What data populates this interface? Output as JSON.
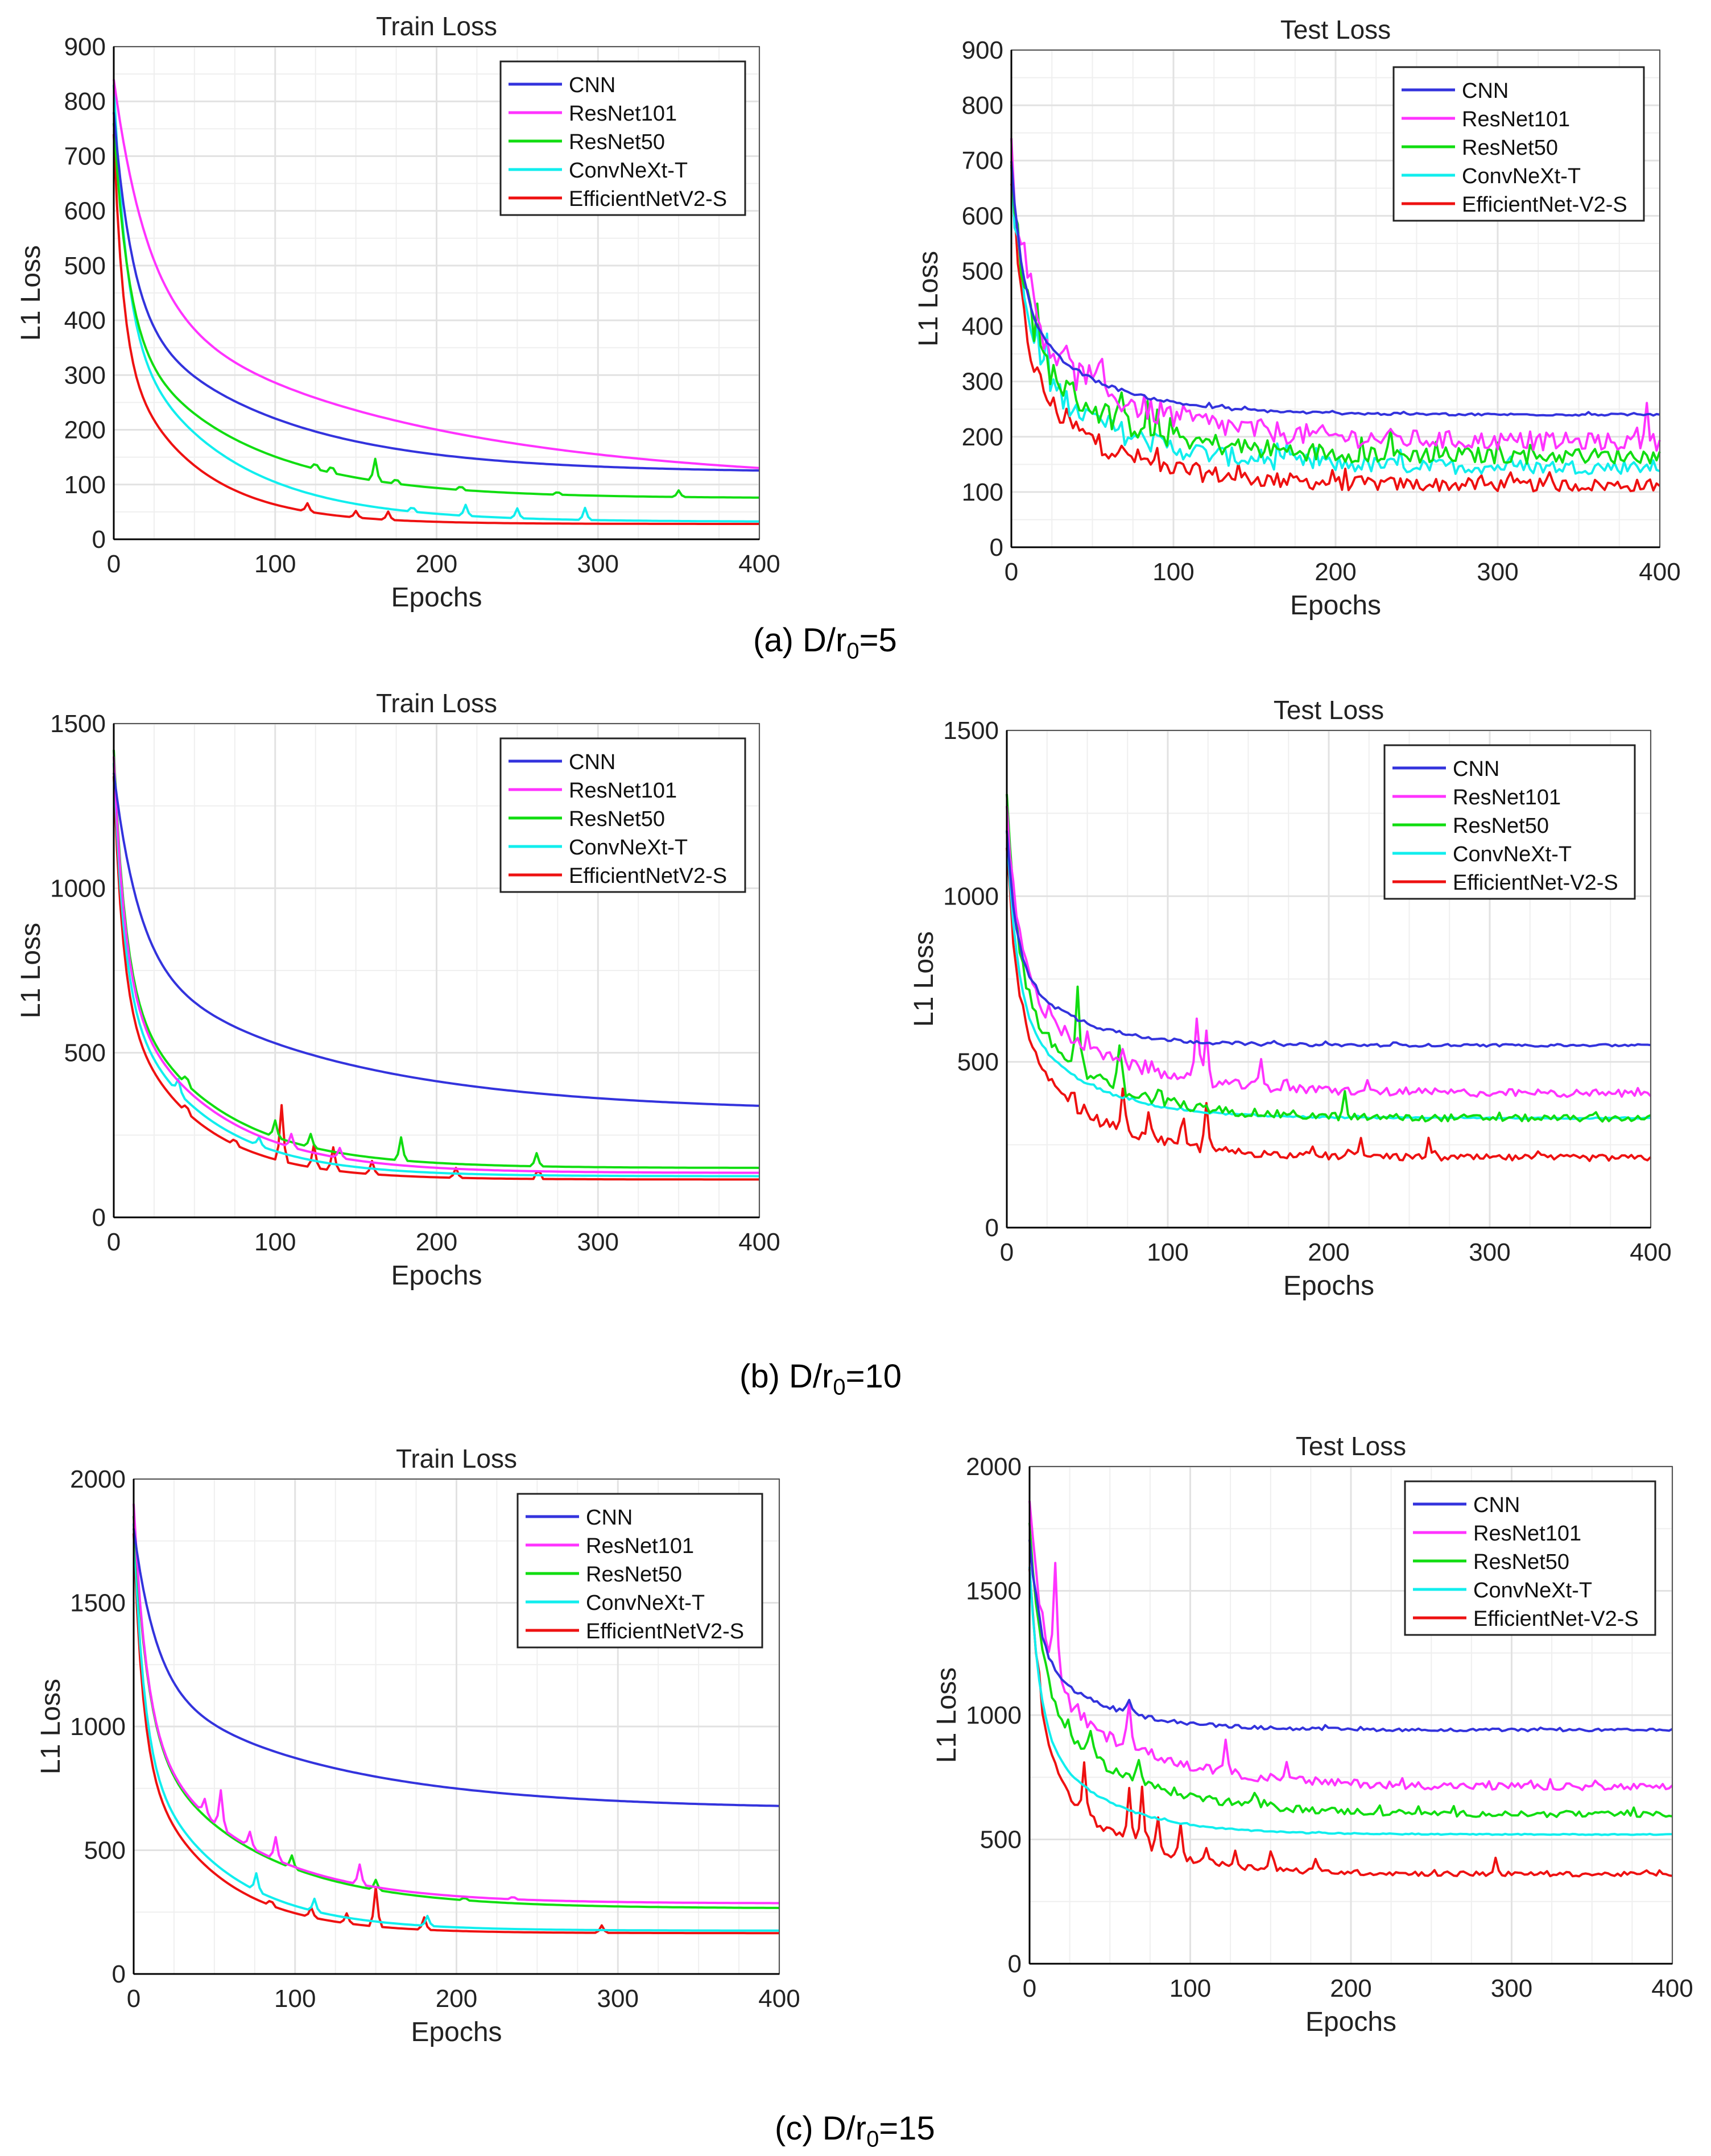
{
  "legend_names": [
    "CNN",
    "ResNet101",
    "ResNet50",
    "ConvNeXt-T",
    "EfficientNetV2-S"
  ],
  "legend_names_test": [
    "CNN",
    "ResNet101",
    "ResNet50",
    "ConvNeXt-T",
    "EfficientNet-V2-S"
  ],
  "colors": {
    "CNN": "#3333dd",
    "ResNet101": "#ff33ff",
    "ResNet50": "#11dd11",
    "ConvNeXt-T": "#11eeee",
    "EfficientNetV2-S": "#ee1111",
    "grid": "#e2e2e2",
    "axis": "#000000"
  },
  "captions": [
    {
      "prefix": "(a) D/r",
      "sub": "0",
      "suffix": "=5"
    },
    {
      "prefix": "(b) D/r",
      "sub": "0",
      "suffix": "=10"
    },
    {
      "prefix": "(c) D/r",
      "sub": "0",
      "suffix": "=15"
    }
  ],
  "chart_data": [
    {
      "type": "line",
      "panel": "a-train",
      "title": "Train Loss",
      "xlabel": "Epochs",
      "ylabel": "L1 Loss",
      "xlim": [
        0,
        400
      ],
      "ylim": [
        0,
        900
      ],
      "xticks": [
        0,
        100,
        200,
        300,
        400
      ],
      "yticks": [
        0,
        100,
        200,
        300,
        400,
        500,
        600,
        700,
        800,
        900
      ],
      "legend": "top-right",
      "grid": true,
      "series": [
        {
          "name": "CNN",
          "kind": "train",
          "start": 780,
          "end": 122,
          "decay": 0.011,
          "spikes": []
        },
        {
          "name": "ResNet101",
          "kind": "train",
          "start": 840,
          "end": 100,
          "decay": 0.006,
          "spikes": []
        },
        {
          "name": "ResNet50",
          "kind": "train",
          "start": 760,
          "end": 75,
          "decay": 0.014,
          "spikes": [
            [
              125,
              30
            ],
            [
              135,
              35
            ],
            [
              162,
              40
            ],
            [
              175,
              25
            ],
            [
              215,
              20
            ],
            [
              275,
              15
            ],
            [
              350,
              12
            ]
          ]
        },
        {
          "name": "ConvNeXt-T",
          "kind": "train",
          "start": 830,
          "end": 32,
          "decay": 0.016,
          "spikes": [
            [
              185,
              25
            ],
            [
              218,
              20
            ],
            [
              250,
              18
            ],
            [
              292,
              22
            ]
          ]
        },
        {
          "name": "EfficientNetV2-S",
          "kind": "train",
          "start": 740,
          "end": 28,
          "decay": 0.022,
          "spikes": [
            [
              120,
              15
            ],
            [
              150,
              12
            ],
            [
              170,
              15
            ]
          ]
        }
      ]
    },
    {
      "type": "line",
      "panel": "a-test",
      "title": "Test Loss",
      "xlabel": "Epochs",
      "ylabel": "L1 Loss",
      "xlim": [
        0,
        400
      ],
      "ylim": [
        0,
        900
      ],
      "xticks": [
        0,
        100,
        200,
        300,
        400
      ],
      "yticks": [
        0,
        100,
        200,
        300,
        400,
        500,
        600,
        700,
        800,
        900
      ],
      "legend": "top-right",
      "grid": true,
      "series": [
        {
          "name": "CNN",
          "kind": "test",
          "start": 700,
          "end": 240,
          "decay": 0.035,
          "noise": 3,
          "spikes": []
        },
        {
          "name": "ResNet101",
          "kind": "test",
          "start": 720,
          "end": 190,
          "decay": 0.025,
          "noise": 25,
          "spikes": [
            [
              392,
              60
            ]
          ]
        },
        {
          "name": "ResNet50",
          "kind": "test",
          "start": 700,
          "end": 165,
          "decay": 0.03,
          "noise": 22,
          "spikes": []
        },
        {
          "name": "ConvNeXt-T",
          "kind": "test",
          "start": 680,
          "end": 145,
          "decay": 0.03,
          "noise": 20,
          "spikes": []
        },
        {
          "name": "EfficientNetV2-S",
          "kind": "test",
          "start": 650,
          "end": 112,
          "decay": 0.032,
          "noise": 18,
          "spikes": []
        }
      ]
    },
    {
      "type": "line",
      "panel": "b-train",
      "title": "Train Loss",
      "xlabel": "Epochs",
      "ylabel": "L1 Loss",
      "xlim": [
        0,
        400
      ],
      "ylim": [
        0,
        1500
      ],
      "xticks": [
        0,
        100,
        200,
        300,
        400
      ],
      "yticks": [
        0,
        500,
        1000,
        1500
      ],
      "legend": "top-right",
      "grid": true,
      "series": [
        {
          "name": "CNN",
          "kind": "train",
          "start": 1350,
          "end": 320,
          "decay": 0.008,
          "spikes": []
        },
        {
          "name": "ResNet101",
          "kind": "train",
          "start": 1400,
          "end": 135,
          "decay": 0.018,
          "spikes": [
            [
              110,
              40
            ],
            [
              140,
              30
            ]
          ]
        },
        {
          "name": "ResNet50",
          "kind": "train",
          "start": 1420,
          "end": 150,
          "decay": 0.018,
          "spikes": [
            [
              45,
              70
            ],
            [
              100,
              50
            ],
            [
              122,
              40
            ],
            [
              178,
              70
            ],
            [
              262,
              40
            ]
          ]
        },
        {
          "name": "ConvNeXt-T",
          "kind": "train",
          "start": 1380,
          "end": 125,
          "decay": 0.02,
          "spikes": [
            [
              40,
              40
            ],
            [
              90,
              25
            ]
          ]
        },
        {
          "name": "EfficientNetV2-S",
          "kind": "train",
          "start": 1340,
          "end": 115,
          "decay": 0.022,
          "spikes": [
            [
              45,
              60
            ],
            [
              75,
              50
            ],
            [
              104,
              170
            ],
            [
              124,
              70
            ],
            [
              136,
              70
            ],
            [
              160,
              40
            ],
            [
              212,
              30
            ],
            [
              263,
              85
            ]
          ]
        }
      ]
    },
    {
      "type": "line",
      "panel": "b-test",
      "title": "Test Loss",
      "xlabel": "Epochs",
      "ylabel": "L1 Loss",
      "xlim": [
        0,
        400
      ],
      "ylim": [
        0,
        1500
      ],
      "xticks": [
        0,
        100,
        200,
        300,
        400
      ],
      "yticks": [
        0,
        500,
        1000,
        1500
      ],
      "legend": "top-right",
      "grid": true,
      "series": [
        {
          "name": "CNN",
          "kind": "test",
          "start": 1200,
          "end": 550,
          "decay": 0.045,
          "noise": 6,
          "spikes": []
        },
        {
          "name": "ResNet101",
          "kind": "test",
          "start": 1250,
          "end": 405,
          "decay": 0.03,
          "noise": 18,
          "spikes": [
            [
              118,
              170
            ],
            [
              124,
              150
            ],
            [
              158,
              80
            ]
          ]
        },
        {
          "name": "ResNet50",
          "kind": "test",
          "start": 1300,
          "end": 330,
          "decay": 0.035,
          "noise": 16,
          "spikes": [
            [
              44,
              250
            ],
            [
              70,
              120
            ],
            [
              95,
              100
            ],
            [
              210,
              60
            ]
          ]
        },
        {
          "name": "ConvNeXt-T",
          "kind": "test",
          "start": 1200,
          "end": 330,
          "decay": 0.04,
          "noise": 3,
          "spikes": []
        },
        {
          "name": "EfficientNetV2-S",
          "kind": "test",
          "start": 1150,
          "end": 210,
          "decay": 0.035,
          "noise": 15,
          "spikes": [
            [
              72,
              140
            ],
            [
              88,
              90
            ],
            [
              110,
              80
            ],
            [
              124,
              130
            ],
            [
              220,
              60
            ],
            [
              262,
              40
            ]
          ]
        }
      ]
    },
    {
      "type": "line",
      "panel": "c-train",
      "title": "Train Loss",
      "xlabel": "Epochs",
      "ylabel": "L1 Loss",
      "xlim": [
        0,
        400
      ],
      "ylim": [
        0,
        2000
      ],
      "xticks": [
        0,
        100,
        200,
        300,
        400
      ],
      "yticks": [
        0,
        500,
        1000,
        1500,
        2000
      ],
      "legend": "top-right",
      "grid": true,
      "series": [
        {
          "name": "CNN",
          "kind": "train",
          "start": 1800,
          "end": 665,
          "decay": 0.009,
          "spikes": []
        },
        {
          "name": "ResNet101",
          "kind": "train",
          "start": 1900,
          "end": 285,
          "decay": 0.016,
          "spikes": [
            [
              44,
              60
            ],
            [
              54,
              150
            ],
            [
              72,
              60
            ],
            [
              88,
              90
            ],
            [
              140,
              80
            ],
            [
              235,
              30
            ]
          ]
        },
        {
          "name": "ResNet50",
          "kind": "train",
          "start": 1850,
          "end": 265,
          "decay": 0.015,
          "spikes": [
            [
              98,
              50
            ],
            [
              150,
              40
            ],
            [
              205,
              30
            ]
          ]
        },
        {
          "name": "ConvNeXt-T",
          "kind": "train",
          "start": 1820,
          "end": 175,
          "decay": 0.02,
          "spikes": [
            [
              76,
              70
            ],
            [
              112,
              50
            ],
            [
              182,
              40
            ]
          ]
        },
        {
          "name": "EfficientNetV2-S",
          "kind": "train",
          "start": 1780,
          "end": 165,
          "decay": 0.022,
          "spikes": [
            [
              85,
              60
            ],
            [
              110,
              40
            ],
            [
              132,
              40
            ],
            [
              150,
              160
            ],
            [
              180,
              50
            ],
            [
              290,
              30
            ]
          ]
        }
      ]
    },
    {
      "type": "line",
      "panel": "c-test",
      "title": "Test Loss",
      "xlabel": "Epochs",
      "ylabel": "L1 Loss",
      "xlim": [
        0,
        400
      ],
      "ylim": [
        0,
        2000
      ],
      "xticks": [
        0,
        100,
        200,
        300,
        400
      ],
      "yticks": [
        0,
        500,
        1000,
        1500,
        2000
      ],
      "legend": "top-right",
      "grid": true,
      "series": [
        {
          "name": "CNN",
          "kind": "test",
          "start": 1700,
          "end": 940,
          "decay": 0.04,
          "noise": 8,
          "spikes": [
            [
              62,
              60
            ]
          ]
        },
        {
          "name": "ResNet101",
          "kind": "test",
          "start": 1850,
          "end": 710,
          "decay": 0.028,
          "noise": 22,
          "spikes": [
            [
              16,
              450
            ],
            [
              62,
              200
            ],
            [
              122,
              150
            ],
            [
              160,
              60
            ]
          ]
        },
        {
          "name": "ResNet50",
          "kind": "test",
          "start": 1750,
          "end": 600,
          "decay": 0.03,
          "noise": 18,
          "spikes": [
            [
              38,
              90
            ],
            [
              68,
              80
            ],
            [
              140,
              60
            ]
          ]
        },
        {
          "name": "ConvNeXt-T",
          "kind": "test",
          "start": 1600,
          "end": 520,
          "decay": 0.04,
          "noise": 3,
          "spikes": []
        },
        {
          "name": "EfficientNetV2-S",
          "kind": "test",
          "start": 1600,
          "end": 360,
          "decay": 0.035,
          "noise": 14,
          "spikes": [
            [
              34,
              200
            ],
            [
              62,
              220
            ],
            [
              70,
              250
            ],
            [
              80,
              130
            ],
            [
              94,
              120
            ],
            [
              110,
              60
            ],
            [
              128,
              60
            ],
            [
              150,
              80
            ],
            [
              178,
              40
            ],
            [
              290,
              60
            ]
          ]
        }
      ]
    }
  ]
}
